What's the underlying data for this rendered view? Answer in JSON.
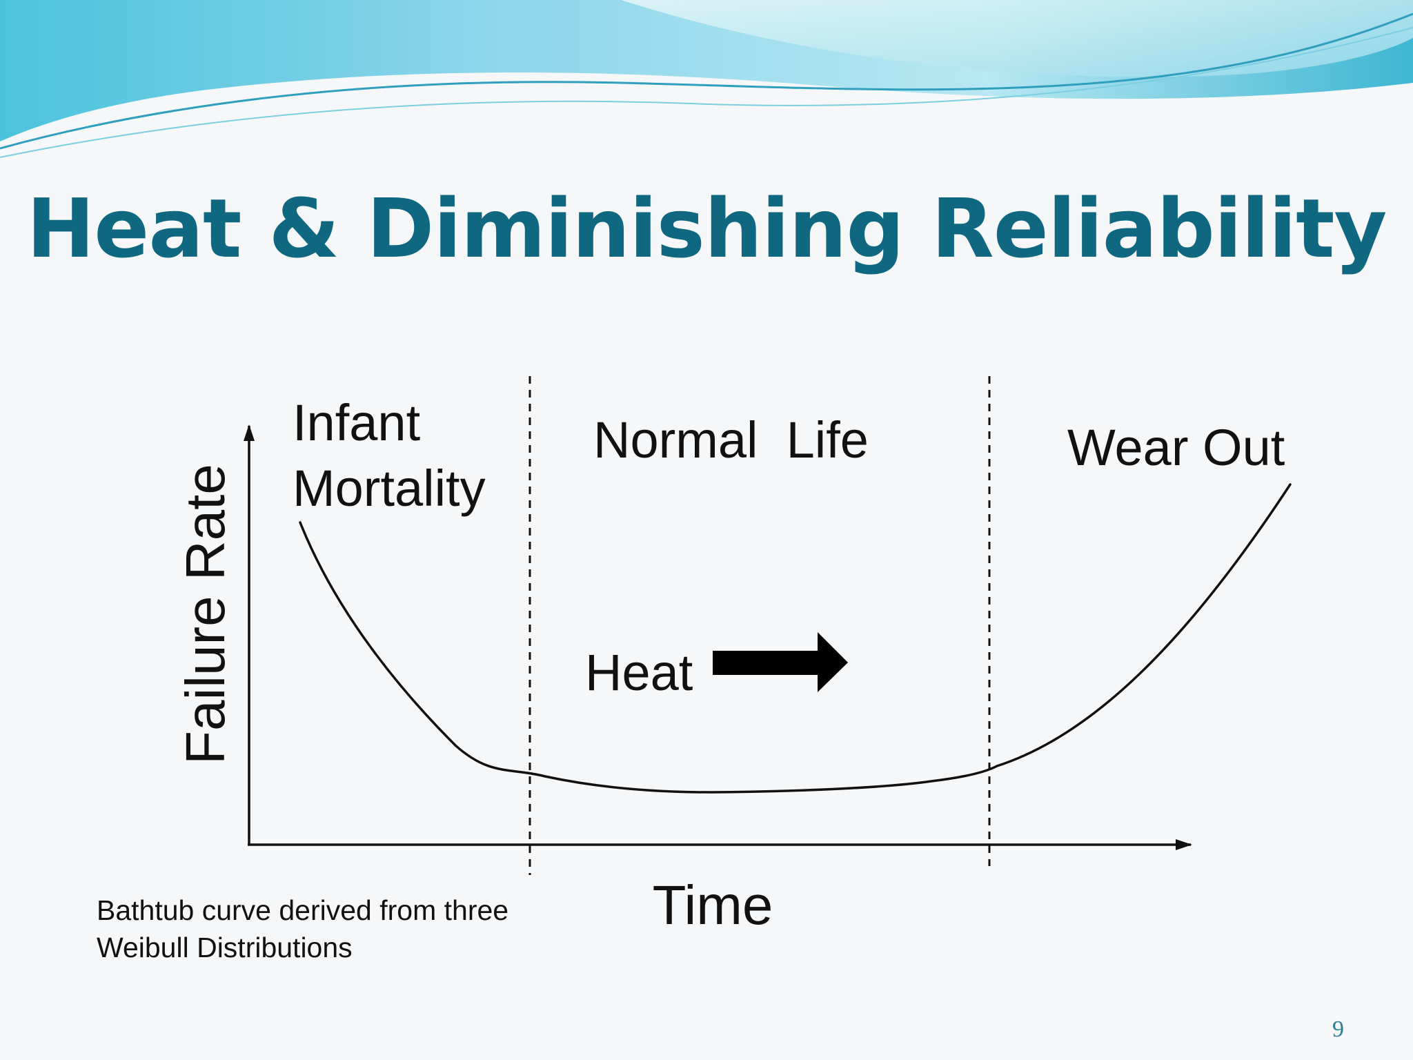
{
  "slide": {
    "title": "Heat & Diminishing Reliability",
    "number": "9"
  },
  "diagram": {
    "y_axis_label": "Failure Rate",
    "x_axis_label": "Time",
    "phases": [
      {
        "line1": "Infant",
        "line2": "Mortality"
      },
      {
        "line1": "Normal  Life"
      },
      {
        "line1": "Wear Out"
      }
    ],
    "annotation": "Heat",
    "curve_shape": "bathtub"
  },
  "caption": {
    "line1": "Bathtub curve derived from three",
    "line2": "Weibull Distributions"
  },
  "colors": {
    "title": "#0f6780",
    "curve": "#111111",
    "wave_light": "#a9e3ef",
    "wave_mid": "#5fc6de",
    "wave_dark": "#2aa6c6"
  }
}
